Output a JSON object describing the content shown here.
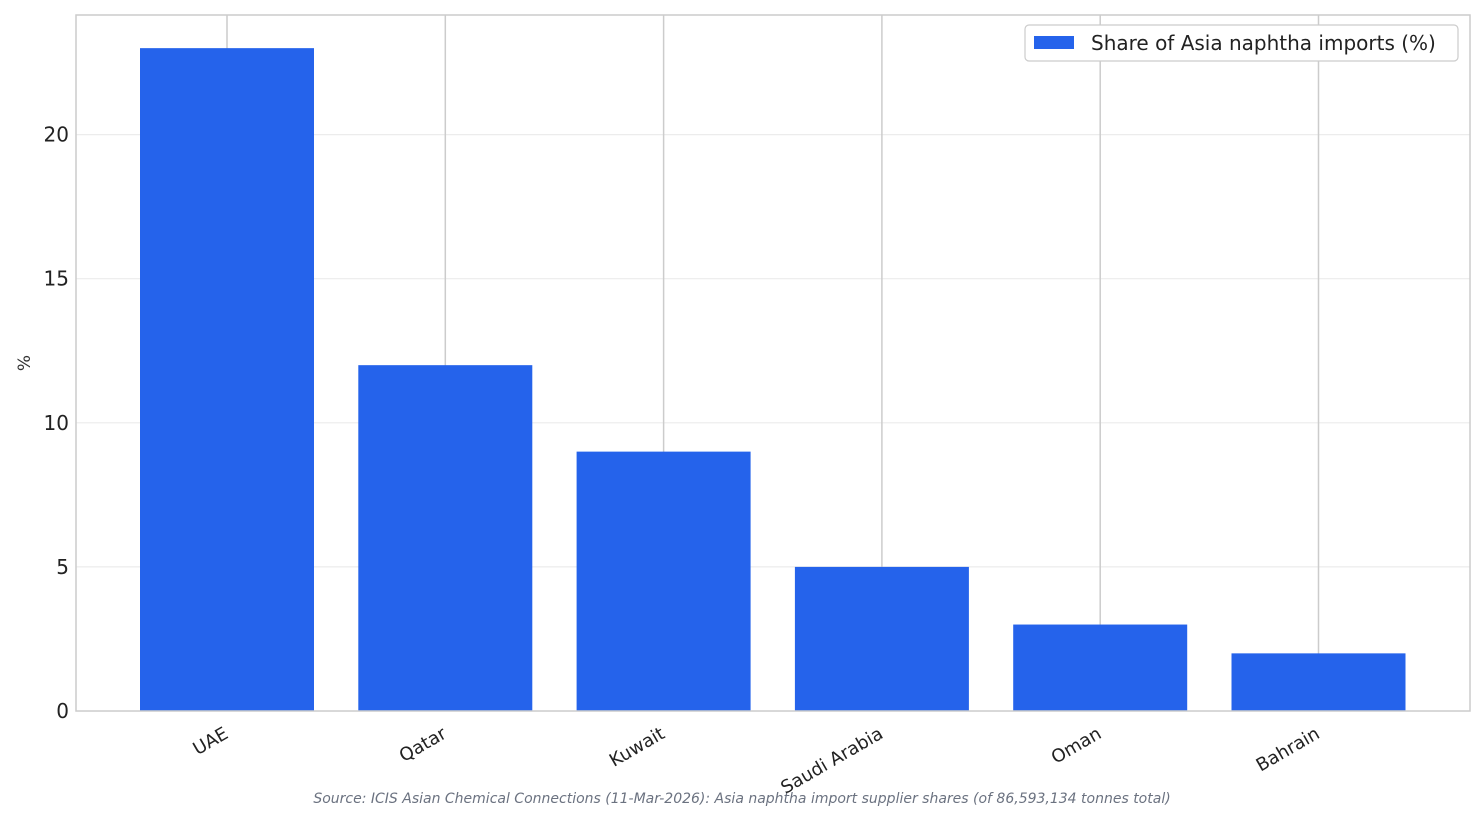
{
  "chart_data": {
    "type": "bar",
    "categories": [
      "UAE",
      "Qatar",
      "Kuwait",
      "Saudi Arabia",
      "Oman",
      "Bahrain"
    ],
    "values": [
      23,
      12,
      9,
      5,
      3,
      2
    ],
    "series": [
      {
        "name": "Share of Asia naphtha imports (%)",
        "values": [
          23,
          12,
          9,
          5,
          3,
          2
        ],
        "color": "#2563eb"
      }
    ],
    "title": "",
    "xlabel": "",
    "ylabel": "%",
    "ylim": [
      0,
      24.15
    ],
    "yticks": [
      "0",
      "5",
      "10",
      "15",
      "20"
    ],
    "grid": true,
    "legend_position": "top-right"
  },
  "source_note": "Source: ICIS Asian Chemical Connections (11-Mar-2026): Asia naphtha import supplier shares (of 86,593,134 tonnes total)"
}
